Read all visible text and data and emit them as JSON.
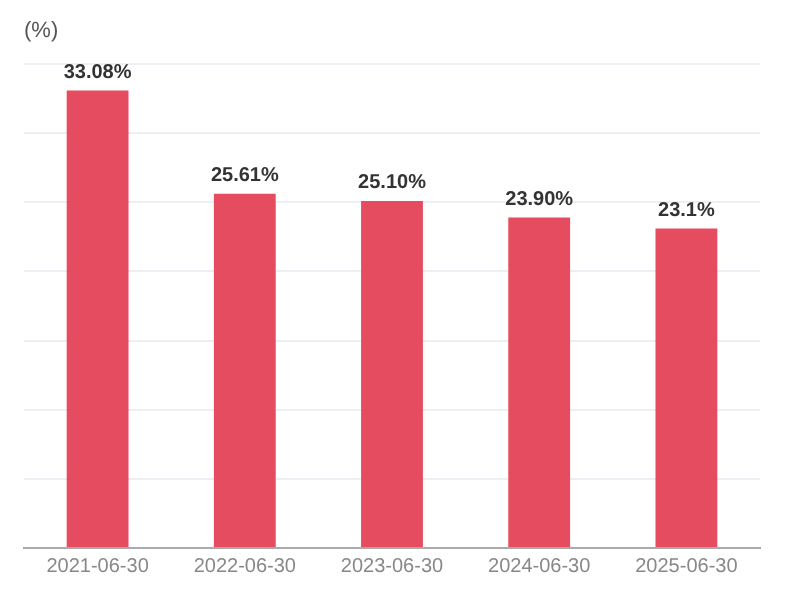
{
  "chart_data": {
    "type": "bar",
    "ylabel": "(%)",
    "categories": [
      "2021-06-30",
      "2022-06-30",
      "2023-06-30",
      "2024-06-30",
      "2025-06-30"
    ],
    "values": [
      33.08,
      25.61,
      25.1,
      23.9,
      23.1
    ],
    "value_labels": [
      "33.08%",
      "25.61%",
      "25.10%",
      "23.90%",
      "23.1%"
    ],
    "color": "#e64c5f",
    "ylim": [
      0,
      35
    ],
    "yticks": [
      0,
      5,
      10,
      15,
      20,
      25,
      30,
      35
    ],
    "tick_labels": "x",
    "grid": "y",
    "legend": false
  }
}
